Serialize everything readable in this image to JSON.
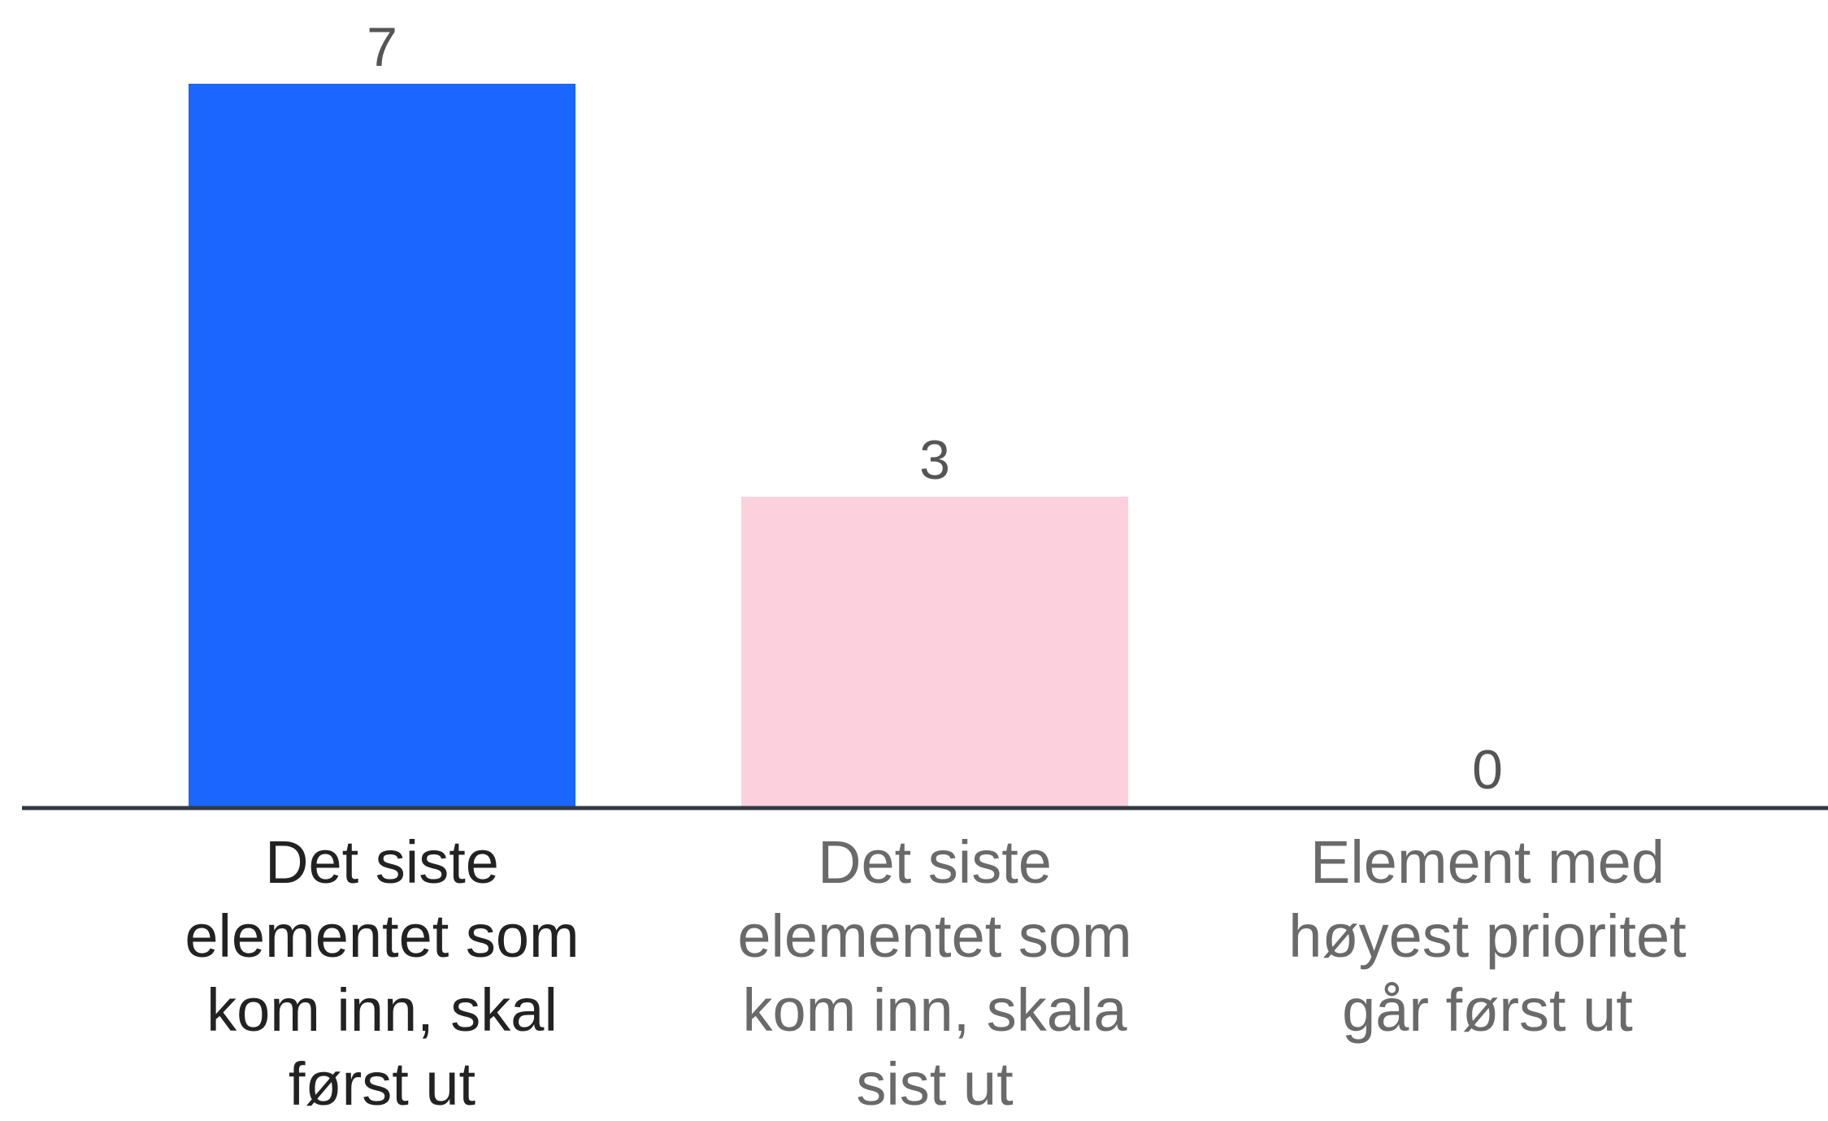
{
  "chart_data": {
    "type": "bar",
    "categories": [
      "Det siste elementet som kom inn, skal først ut",
      "Det siste elementet som kom inn, skala sist ut",
      "Element med høyest prioritet går først ut"
    ],
    "values": [
      7,
      3,
      0
    ],
    "colors": [
      "#1a66ff",
      "#fdd0de",
      "#dddddd"
    ]
  }
}
